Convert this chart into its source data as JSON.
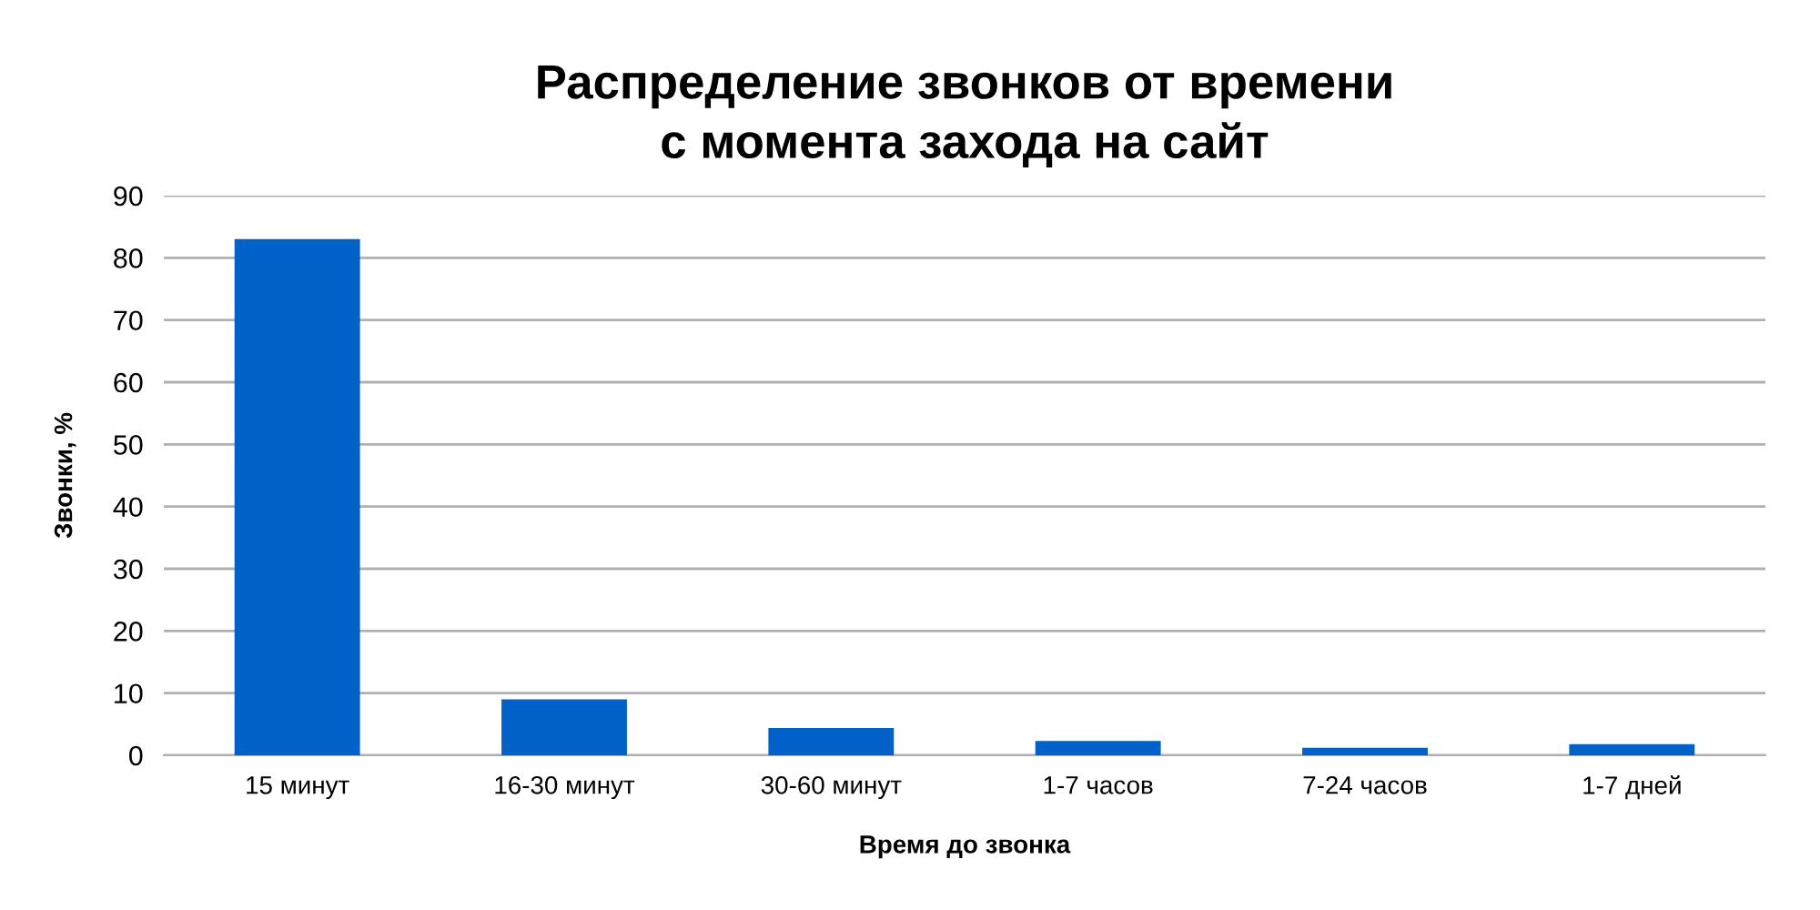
{
  "chart_data": {
    "type": "bar",
    "title": "Распределение звонков от времени\nс момента захода на сайт",
    "xlabel": "Время до звонка",
    "ylabel": "Звонки, %",
    "categories": [
      "15 минут",
      "16-30 минут",
      "30-60 минут",
      "1-7 часов",
      "7-24 часов",
      "1-7 дней"
    ],
    "values": [
      83,
      9,
      4.4,
      2.3,
      1.2,
      1.8
    ],
    "color": "#0061c8",
    "ylim": [
      0,
      90
    ],
    "yticks": [
      0,
      10,
      20,
      30,
      40,
      50,
      60,
      70,
      80,
      90
    ],
    "grid": "y"
  }
}
